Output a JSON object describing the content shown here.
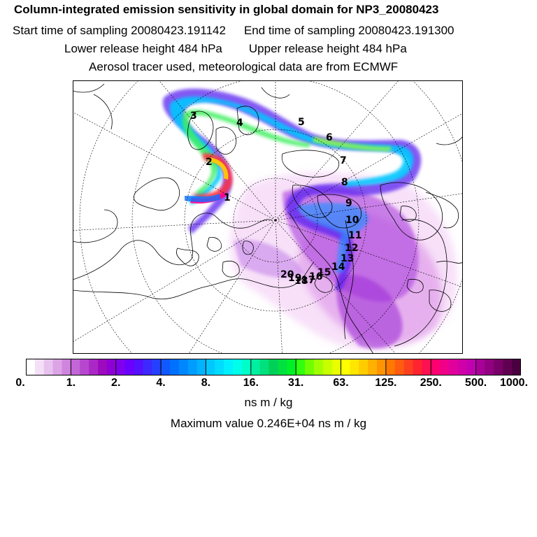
{
  "header": {
    "title": "Column-integrated emission sensitivity in global domain for NP3_20080423",
    "start_time": "Start time of sampling 20080423.191142",
    "end_time": "End time of sampling 20080423.191300",
    "lower_release": "Lower release height  484 hPa",
    "upper_release": "Upper release height  484 hPa",
    "tracer_note": "Aerosol tracer used, meteorological data are from ECMWF"
  },
  "map": {
    "projection": "polar stereographic (north)",
    "day_markers": [
      "1",
      "2",
      "3",
      "4",
      "5",
      "6",
      "7",
      "8",
      "9",
      "10",
      "11",
      "12",
      "13",
      "14",
      "15",
      "16",
      "17",
      "18",
      "19",
      "20"
    ]
  },
  "colorbar": {
    "tick_labels": [
      "0.",
      "1.",
      "2.",
      "4.",
      "8.",
      "16.",
      "31.",
      "63.",
      "125.",
      "250.",
      "500.",
      "1000."
    ],
    "units": "ns m / kg",
    "colors": [
      "#ffffff",
      "#f4e0f6",
      "#e8c2ee",
      "#dca3e6",
      "#cf84de",
      "#c366d6",
      "#b647ce",
      "#aa29c6",
      "#9e0abe",
      "#8f00d6",
      "#7f00ec",
      "#6a00ff",
      "#5410ff",
      "#3d28ff",
      "#2640ff",
      "#1058ff",
      "#0070ff",
      "#0086ff",
      "#009cff",
      "#00b2ff",
      "#00c8ff",
      "#00dcff",
      "#00f0ff",
      "#00ffea",
      "#00ffc8",
      "#00f0a0",
      "#00e07c",
      "#00d058",
      "#00e040",
      "#00f028",
      "#30ff10",
      "#70ff00",
      "#a0ff00",
      "#c8ff00",
      "#e8ff00",
      "#ffff00",
      "#ffe600",
      "#ffcc00",
      "#ffb000",
      "#ff9400",
      "#ff7800",
      "#ff5c10",
      "#ff4020",
      "#ff2430",
      "#ff1050",
      "#ff0070",
      "#f00088",
      "#e0009c",
      "#d000a8",
      "#c000b0",
      "#a80098",
      "#900080",
      "#780068",
      "#600050",
      "#4a0040"
    ]
  },
  "max_value": "Maximum value  0.246E+04 ns m / kg"
}
